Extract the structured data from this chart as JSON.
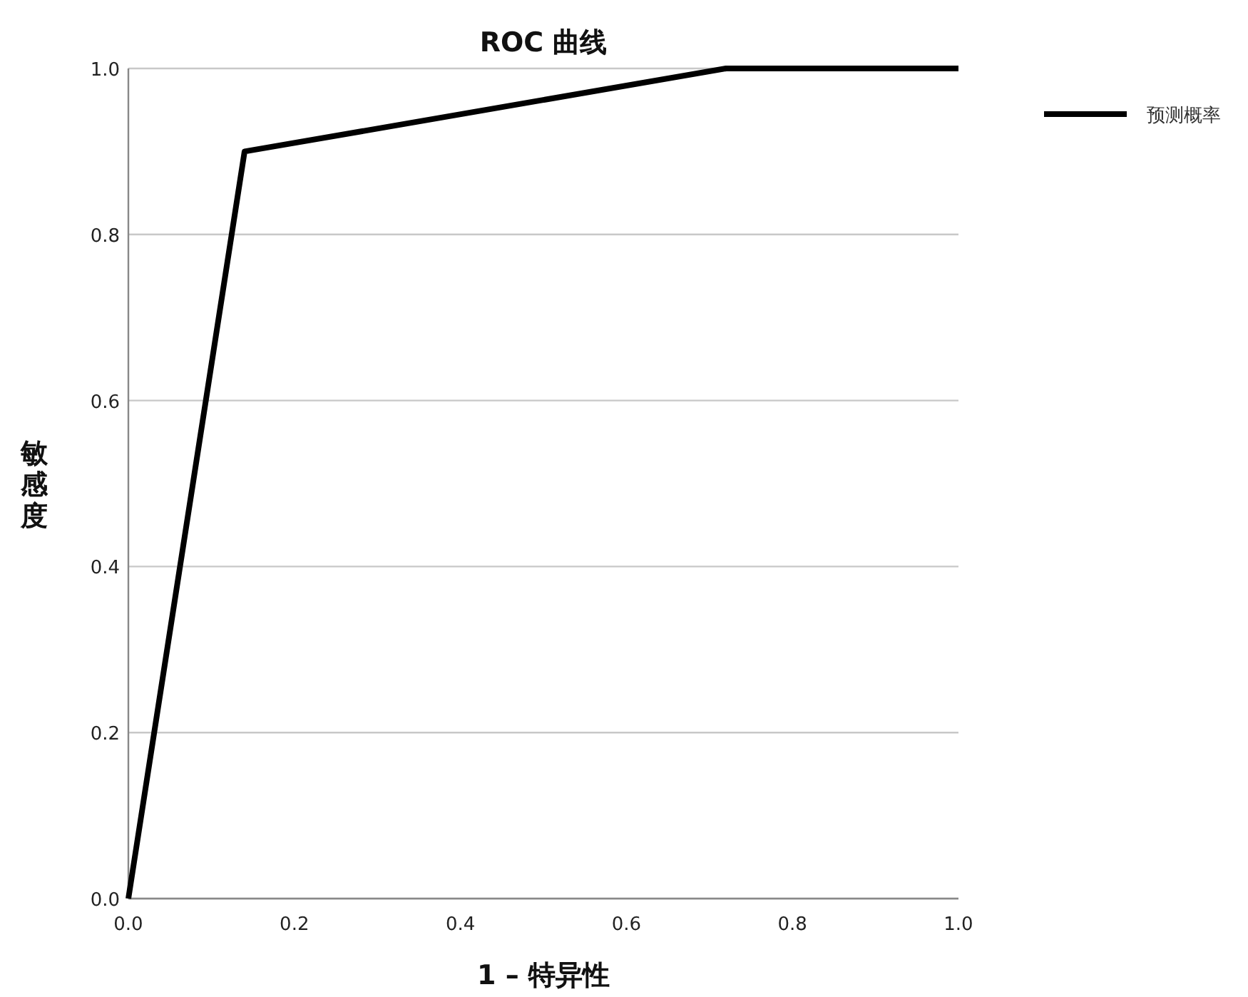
{
  "chart_data": {
    "type": "line",
    "title": "ROC 曲线",
    "xlabel": "1 – 特异性",
    "ylabel": "敏感度",
    "x": [
      0,
      0.14,
      0.72,
      1
    ],
    "series": [
      {
        "name": "预测概率",
        "color": "#000000",
        "values": [
          0,
          0.9,
          1,
          1
        ]
      }
    ],
    "xlim": [
      0,
      1
    ],
    "ylim": [
      0,
      1
    ],
    "xticks": [
      {
        "value": 0,
        "label": "0.0"
      },
      0.2,
      0.4,
      0.6,
      0.8,
      {
        "value": 1,
        "label": "1.0"
      }
    ],
    "yticks": [
      {
        "value": 0,
        "label": "0.0"
      },
      0.2,
      0.4,
      0.6,
      0.8,
      {
        "value": 1,
        "label": "1.0"
      }
    ],
    "grid": "y",
    "legend": "top right",
    "marker": "none",
    "line_style": "solid"
  }
}
